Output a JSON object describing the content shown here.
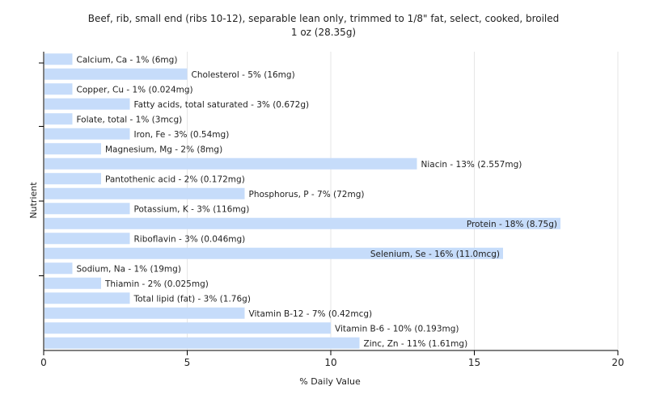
{
  "chart_data": {
    "type": "bar",
    "orientation": "horizontal",
    "title": "Beef, rib, small end (ribs 10-12), separable lean only, trimmed to 1/8\" fat, select, cooked, broiled",
    "subtitle": "1 oz (28.35g)",
    "xlabel": "% Daily Value",
    "ylabel": "Nutrient",
    "xlim": [
      0,
      20
    ],
    "xticks": [
      0,
      5,
      10,
      15,
      20
    ],
    "grid": "vertical",
    "bar_color": "#c6dcfa",
    "grid_color": "#e6e6e6",
    "axis_color": "#000000",
    "categories": [
      "Calcium, Ca",
      "Cholesterol",
      "Copper, Cu",
      "Fatty acids, total saturated",
      "Folate, total",
      "Iron, Fe",
      "Magnesium, Mg",
      "Niacin",
      "Pantothenic acid",
      "Phosphorus, P",
      "Potassium, K",
      "Protein",
      "Riboflavin",
      "Selenium, Se",
      "Sodium, Na",
      "Thiamin",
      "Total lipid (fat)",
      "Vitamin B-12",
      "Vitamin B-6",
      "Zinc, Zn"
    ],
    "values": [
      1,
      5,
      1,
      3,
      1,
      3,
      2,
      13,
      2,
      7,
      3,
      18,
      3,
      16,
      1,
      2,
      3,
      7,
      10,
      11
    ],
    "labels": [
      "Calcium, Ca - 1% (6mg)",
      "Cholesterol - 5% (16mg)",
      "Copper, Cu - 1% (0.024mg)",
      "Fatty acids, total saturated - 3% (0.672g)",
      "Folate, total - 1% (3mcg)",
      "Iron, Fe - 3% (0.54mg)",
      "Magnesium, Mg - 2% (8mg)",
      "Niacin - 13% (2.557mg)",
      "Pantothenic acid - 2% (0.172mg)",
      "Phosphorus, P - 7% (72mg)",
      "Potassium, K - 3% (116mg)",
      "Protein - 18% (8.75g)",
      "Riboflavin - 3% (0.046mg)",
      "Selenium, Se - 16% (11.0mcg)",
      "Sodium, Na - 1% (19mg)",
      "Thiamin - 2% (0.025mg)",
      "Total lipid (fat) - 3% (1.76g)",
      "Vitamin B-12 - 7% (0.42mcg)",
      "Vitamin B-6 - 10% (0.193mg)",
      "Zinc, Zn - 11% (1.61mg)"
    ],
    "inside_label_categories": [
      "Protein",
      "Selenium, Se"
    ]
  }
}
